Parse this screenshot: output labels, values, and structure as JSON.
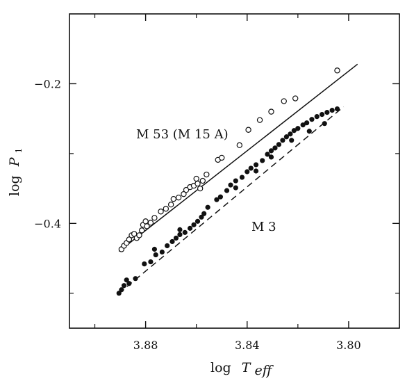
{
  "chart_data": {
    "type": "scatter",
    "xlabel_prefix": "log",
    "xlabel_symbol": "T",
    "xlabel_sub": "eff",
    "ylabel_prefix": "log",
    "ylabel_symbol": "P",
    "ylabel_sub": "1",
    "x_reversed": true,
    "xlim": [
      3.91,
      3.78
    ],
    "ylim": [
      -0.55,
      -0.1
    ],
    "x_ticks": [
      3.88,
      3.84,
      3.8
    ],
    "x_tick_labels": [
      "3.88",
      "3.84",
      "3.80"
    ],
    "y_ticks": [
      -0.2,
      -0.4
    ],
    "y_tick_labels": [
      "−0.2",
      "−0.4"
    ],
    "grid": false,
    "annotations": [
      {
        "id": "m53",
        "text": "M 53 (M 15 A)"
      },
      {
        "id": "m3",
        "text": "M 3"
      }
    ],
    "series": [
      {
        "name": "M 53 (M 15 A)",
        "marker": "open-circle",
        "line": "solid",
        "fit": [
          [
            3.8905,
            -0.44
          ],
          [
            3.7965,
            -0.172
          ]
        ],
        "points": [
          [
            3.8895,
            -0.437
          ],
          [
            3.8885,
            -0.432
          ],
          [
            3.8875,
            -0.428
          ],
          [
            3.8865,
            -0.423
          ],
          [
            3.8855,
            -0.417
          ],
          [
            3.8845,
            -0.415
          ],
          [
            3.8835,
            -0.421
          ],
          [
            3.8825,
            -0.417
          ],
          [
            3.8815,
            -0.41
          ],
          [
            3.881,
            -0.402
          ],
          [
            3.88,
            -0.397
          ],
          [
            3.8795,
            -0.404
          ],
          [
            3.878,
            -0.399
          ],
          [
            3.8765,
            -0.392
          ],
          [
            3.874,
            -0.383
          ],
          [
            3.872,
            -0.379
          ],
          [
            3.87,
            -0.373
          ],
          [
            3.869,
            -0.365
          ],
          [
            3.867,
            -0.363
          ],
          [
            3.865,
            -0.358
          ],
          [
            3.864,
            -0.352
          ],
          [
            3.8625,
            -0.348
          ],
          [
            3.861,
            -0.346
          ],
          [
            3.86,
            -0.336
          ],
          [
            3.8595,
            -0.343
          ],
          [
            3.8585,
            -0.35
          ],
          [
            3.8575,
            -0.339
          ],
          [
            3.856,
            -0.33
          ],
          [
            3.8515,
            -0.309
          ],
          [
            3.85,
            -0.306
          ],
          [
            3.843,
            -0.288
          ],
          [
            3.8395,
            -0.266
          ],
          [
            3.835,
            -0.252
          ],
          [
            3.8305,
            -0.24
          ],
          [
            3.8255,
            -0.225
          ],
          [
            3.821,
            -0.221
          ],
          [
            3.8045,
            -0.181
          ]
        ]
      },
      {
        "name": "M 3",
        "marker": "filled-circle",
        "line": "dashed",
        "fit": [
          [
            3.8905,
            -0.5
          ],
          [
            3.802,
            -0.233
          ]
        ],
        "points": [
          [
            3.8905,
            -0.5
          ],
          [
            3.8895,
            -0.495
          ],
          [
            3.8885,
            -0.489
          ],
          [
            3.8875,
            -0.481
          ],
          [
            3.8865,
            -0.486
          ],
          [
            3.884,
            -0.479
          ],
          [
            3.8805,
            -0.458
          ],
          [
            3.878,
            -0.455
          ],
          [
            3.876,
            -0.445
          ],
          [
            3.8735,
            -0.441
          ],
          [
            3.8715,
            -0.432
          ],
          [
            3.8695,
            -0.426
          ],
          [
            3.868,
            -0.421
          ],
          [
            3.8665,
            -0.416
          ],
          [
            3.8645,
            -0.413
          ],
          [
            3.8625,
            -0.407
          ],
          [
            3.861,
            -0.402
          ],
          [
            3.8595,
            -0.397
          ],
          [
            3.857,
            -0.386
          ],
          [
            3.858,
            -0.391
          ],
          [
            3.852,
            -0.366
          ],
          [
            3.8505,
            -0.362
          ],
          [
            3.848,
            -0.353
          ],
          [
            3.8465,
            -0.345
          ],
          [
            3.8445,
            -0.339
          ],
          [
            3.842,
            -0.334
          ],
          [
            3.84,
            -0.326
          ],
          [
            3.8385,
            -0.321
          ],
          [
            3.8365,
            -0.316
          ],
          [
            3.834,
            -0.31
          ],
          [
            3.832,
            -0.301
          ],
          [
            3.8305,
            -0.296
          ],
          [
            3.829,
            -0.292
          ],
          [
            3.8275,
            -0.287
          ],
          [
            3.826,
            -0.281
          ],
          [
            3.8245,
            -0.276
          ],
          [
            3.823,
            -0.272
          ],
          [
            3.8215,
            -0.267
          ],
          [
            3.82,
            -0.264
          ],
          [
            3.818,
            -0.259
          ],
          [
            3.8165,
            -0.256
          ],
          [
            3.8145,
            -0.251
          ],
          [
            3.8125,
            -0.247
          ],
          [
            3.8105,
            -0.244
          ],
          [
            3.8085,
            -0.241
          ],
          [
            3.8065,
            -0.238
          ],
          [
            3.8045,
            -0.236
          ],
          [
            3.8095,
            -0.257
          ],
          [
            3.8155,
            -0.268
          ],
          [
            3.8225,
            -0.281
          ],
          [
            3.8305,
            -0.305
          ],
          [
            3.8365,
            -0.325
          ],
          [
            3.8445,
            -0.349
          ],
          [
            3.8555,
            -0.377
          ],
          [
            3.8665,
            -0.409
          ],
          [
            3.8765,
            -0.437
          ]
        ]
      }
    ]
  }
}
